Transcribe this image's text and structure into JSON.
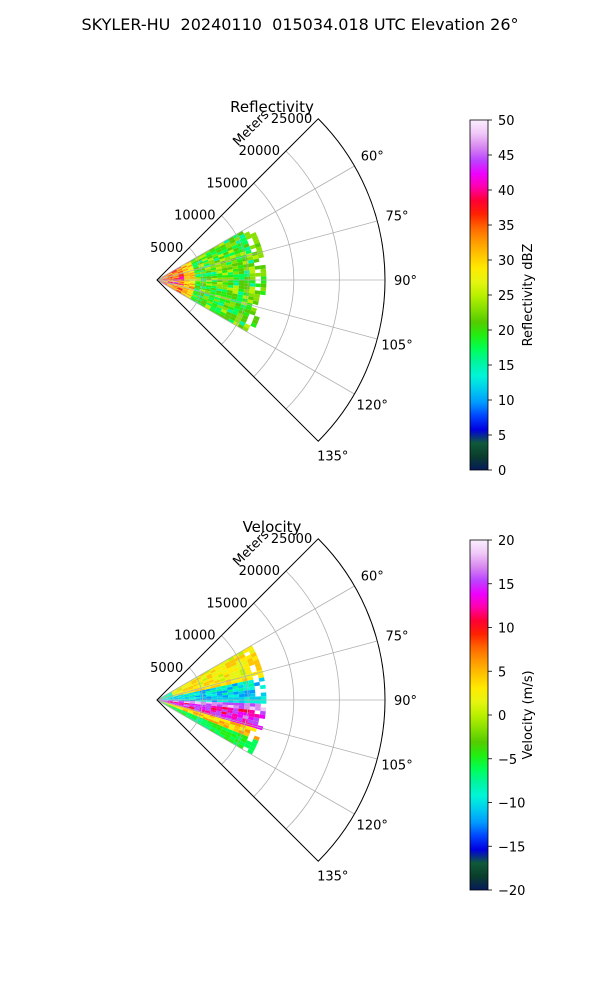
{
  "figure_title": "SKYLER-HU  20240110  015034.018 UTC Elevation 26°",
  "chart_data": [
    {
      "type": "polar-sector",
      "title": "Reflectivity",
      "radial_label": "Meters",
      "radial_ticks": [
        5000,
        10000,
        15000,
        20000,
        25000
      ],
      "radial_tick_labels": [
        "5000",
        "10000",
        "15000",
        "20000",
        "25000"
      ],
      "rlim": [
        0,
        25000
      ],
      "angle_range": [
        45,
        135
      ],
      "angle_ticks": [
        60,
        75,
        90,
        105,
        120,
        135
      ],
      "angle_tick_labels": [
        "60°",
        "75°",
        "90°",
        "105°",
        "120°",
        "135°"
      ],
      "grid": true,
      "data_extent": {
        "angle_range": [
          60,
          120
        ],
        "max_range_m": 12000
      },
      "colorbar": {
        "label": "Reflectivity dBZ",
        "range": [
          0,
          50
        ],
        "ticks": [
          0,
          5,
          10,
          15,
          20,
          25,
          30,
          35,
          40,
          45,
          50
        ],
        "tick_labels": [
          "0",
          "5",
          "10",
          "15",
          "20",
          "25",
          "30",
          "35",
          "40",
          "45",
          "50"
        ]
      }
    },
    {
      "type": "polar-sector",
      "title": "Velocity",
      "radial_label": "Meters",
      "radial_ticks": [
        5000,
        10000,
        15000,
        20000,
        25000
      ],
      "radial_tick_labels": [
        "5000",
        "10000",
        "15000",
        "20000",
        "25000"
      ],
      "rlim": [
        0,
        25000
      ],
      "angle_range": [
        45,
        135
      ],
      "angle_ticks": [
        60,
        75,
        90,
        105,
        120,
        135
      ],
      "angle_tick_labels": [
        "60°",
        "75°",
        "90°",
        "105°",
        "120°",
        "135°"
      ],
      "grid": true,
      "data_extent": {
        "angle_range": [
          60,
          120
        ],
        "max_range_m": 12000
      },
      "colorbar": {
        "label": "Velocity (m/s)",
        "range": [
          -20,
          20
        ],
        "ticks": [
          -20,
          -15,
          -10,
          -5,
          0,
          5,
          10,
          15,
          20
        ],
        "tick_labels": [
          "−20",
          "−15",
          "−10",
          "−5",
          "0",
          "5",
          "10",
          "15",
          "20"
        ]
      }
    }
  ],
  "colormap": [
    "#061a5c",
    "#0a3d2c",
    "#0f5a3a",
    "#0000e0",
    "#0044ff",
    "#0099ff",
    "#00ccee",
    "#00f5d8",
    "#00f5a0",
    "#00ff55",
    "#22ee11",
    "#55cc00",
    "#88e000",
    "#bbf000",
    "#e6f510",
    "#ffea00",
    "#ffc400",
    "#ff9900",
    "#ff6600",
    "#ff2200",
    "#ff0033",
    "#ff00aa",
    "#ee00ff",
    "#bb44ff",
    "#d888f0",
    "#f0c8f8",
    "#fbeefe"
  ]
}
